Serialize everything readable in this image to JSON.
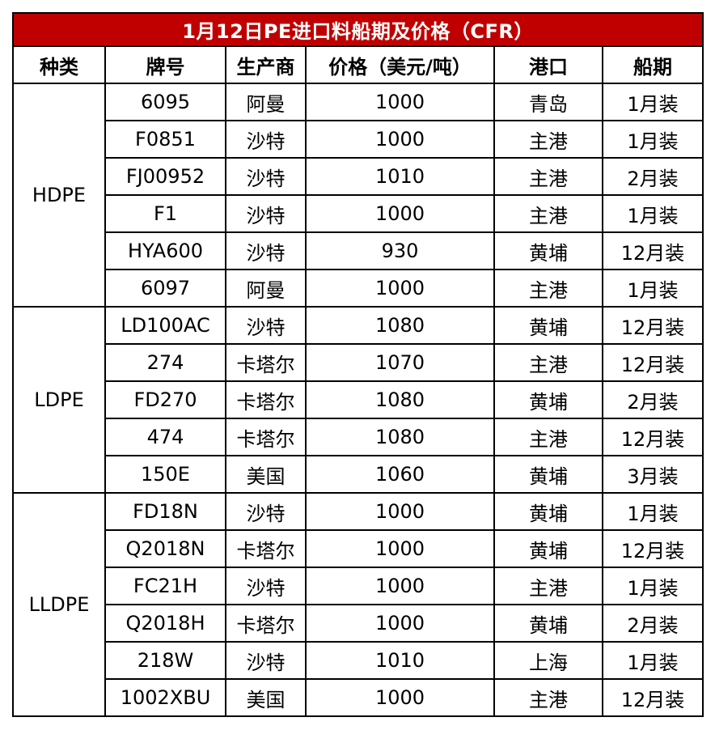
{
  "title": "1月12日PE进口料船期及价格（CFR）",
  "colors": {
    "title_bg": "#c00000",
    "title_text": "#ffffff",
    "border": "#000000"
  },
  "headers": [
    "种类",
    "牌号",
    "生产商",
    "价格（美元/吨）",
    "港口",
    "船期"
  ],
  "groups": [
    {
      "category": "HDPE",
      "rows": [
        {
          "grade": "6095",
          "producer": "阿曼",
          "price": "1000",
          "port": "青岛",
          "shipment": "1月装"
        },
        {
          "grade": "F0851",
          "producer": "沙特",
          "price": "1000",
          "port": "主港",
          "shipment": "1月装"
        },
        {
          "grade": "FJ00952",
          "producer": "沙特",
          "price": "1010",
          "port": "主港",
          "shipment": "2月装"
        },
        {
          "grade": "F1",
          "producer": "沙特",
          "price": "1000",
          "port": "主港",
          "shipment": "1月装"
        },
        {
          "grade": "HYA600",
          "producer": "沙特",
          "price": "930",
          "port": "黄埔",
          "shipment": "12月装"
        },
        {
          "grade": "6097",
          "producer": "阿曼",
          "price": "1000",
          "port": "主港",
          "shipment": "1月装"
        }
      ]
    },
    {
      "category": "LDPE",
      "rows": [
        {
          "grade": "LD100AC",
          "producer": "沙特",
          "price": "1080",
          "port": "黄埔",
          "shipment": "12月装"
        },
        {
          "grade": "274",
          "producer": "卡塔尔",
          "price": "1070",
          "port": "主港",
          "shipment": "12月装"
        },
        {
          "grade": "FD270",
          "producer": "卡塔尔",
          "price": "1080",
          "port": "黄埔",
          "shipment": "2月装"
        },
        {
          "grade": "474",
          "producer": "卡塔尔",
          "price": "1080",
          "port": "主港",
          "shipment": "12月装"
        },
        {
          "grade": "150E",
          "producer": "美国",
          "price": "1060",
          "port": "黄埔",
          "shipment": "3月装"
        }
      ]
    },
    {
      "category": "LLDPE",
      "rows": [
        {
          "grade": "FD18N",
          "producer": "沙特",
          "price": "1000",
          "port": "黄埔",
          "shipment": "1月装"
        },
        {
          "grade": "Q2018N",
          "producer": "卡塔尔",
          "price": "1000",
          "port": "黄埔",
          "shipment": "12月装"
        },
        {
          "grade": "FC21H",
          "producer": "沙特",
          "price": "1000",
          "port": "主港",
          "shipment": "1月装"
        },
        {
          "grade": "Q2018H",
          "producer": "卡塔尔",
          "price": "1000",
          "port": "黄埔",
          "shipment": "2月装"
        },
        {
          "grade": "218W",
          "producer": "沙特",
          "price": "1010",
          "port": "上海",
          "shipment": "1月装"
        },
        {
          "grade": "1002XBU",
          "producer": "美国",
          "price": "1000",
          "port": "主港",
          "shipment": "12月装"
        }
      ]
    }
  ]
}
